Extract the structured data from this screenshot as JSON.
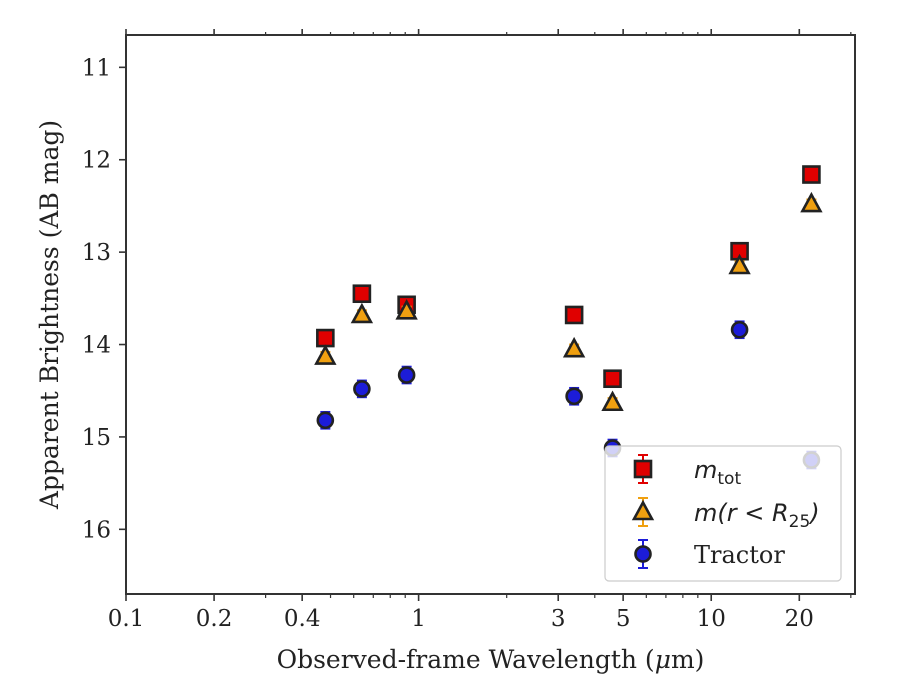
{
  "chart_data": {
    "type": "scatter",
    "x_scale": "log",
    "y_inverted": true,
    "xlim": [
      0.1,
      31
    ],
    "ylim": [
      16.7,
      10.65
    ],
    "xlabel_main": "Observed-frame Wavelength (",
    "xlabel_mu": "μ",
    "xlabel_tail": "m)",
    "ylabel": "Apparent Brightness (AB mag)",
    "xticks": [
      {
        "value": 0.1,
        "label": "0.1"
      },
      {
        "value": 0.2,
        "label": "0.2"
      },
      {
        "value": 0.4,
        "label": "0.4"
      },
      {
        "value": 1,
        "label": "1"
      },
      {
        "value": 3,
        "label": "3"
      },
      {
        "value": 5,
        "label": "5"
      },
      {
        "value": 10,
        "label": "10"
      },
      {
        "value": 20,
        "label": "20"
      }
    ],
    "xminor": [
      0.3,
      0.5,
      0.6,
      0.7,
      0.8,
      0.9,
      2,
      4,
      6,
      7,
      8,
      9,
      30
    ],
    "yticks": [
      {
        "value": 11,
        "label": "11"
      },
      {
        "value": 12,
        "label": "12"
      },
      {
        "value": 13,
        "label": "13"
      },
      {
        "value": 14,
        "label": "14"
      },
      {
        "value": 15,
        "label": "15"
      },
      {
        "value": 16,
        "label": "16"
      }
    ],
    "series": [
      {
        "key": "mtot",
        "marker": "square",
        "color": "#e00000",
        "edge": "#222222",
        "errcolor": "#e00000",
        "points": [
          {
            "x": 0.48,
            "y": 13.93,
            "err": 0.06
          },
          {
            "x": 0.64,
            "y": 13.45,
            "err": 0.06
          },
          {
            "x": 0.91,
            "y": 13.57,
            "err": 0.06
          },
          {
            "x": 3.4,
            "y": 13.68,
            "err": 0.06
          },
          {
            "x": 4.6,
            "y": 14.37,
            "err": 0.06
          },
          {
            "x": 12.5,
            "y": 12.99,
            "err": 0.07
          },
          {
            "x": 22.0,
            "y": 12.16,
            "err": 0.08
          }
        ]
      },
      {
        "key": "mr25",
        "marker": "triangle",
        "color": "#f0a010",
        "edge": "#222222",
        "errcolor": "#f0a010",
        "points": [
          {
            "x": 0.48,
            "y": 14.13,
            "err": 0.05
          },
          {
            "x": 0.64,
            "y": 13.68,
            "err": 0.05
          },
          {
            "x": 0.91,
            "y": 13.64,
            "err": 0.05
          },
          {
            "x": 3.4,
            "y": 14.05,
            "err": 0.05
          },
          {
            "x": 4.6,
            "y": 14.63,
            "err": 0.05
          },
          {
            "x": 12.5,
            "y": 13.15,
            "err": 0.05
          },
          {
            "x": 22.0,
            "y": 12.48,
            "err": 0.05
          }
        ]
      },
      {
        "key": "tractor",
        "marker": "circle",
        "color": "#1c1cd8",
        "edge": "#222222",
        "errcolor": "#1c1cd8",
        "points": [
          {
            "x": 0.48,
            "y": 14.82,
            "err": 0.09
          },
          {
            "x": 0.64,
            "y": 14.48,
            "err": 0.09
          },
          {
            "x": 0.91,
            "y": 14.33,
            "err": 0.09
          },
          {
            "x": 3.4,
            "y": 14.56,
            "err": 0.09
          },
          {
            "x": 4.6,
            "y": 15.12,
            "err": 0.09
          },
          {
            "x": 12.5,
            "y": 13.84,
            "err": 0.09
          },
          {
            "x": 22.0,
            "y": 15.25,
            "err": 0.09
          }
        ]
      }
    ],
    "legend": {
      "position": "lower right",
      "entries": [
        {
          "key": "mtot",
          "label_main": "m",
          "label_sub": "tot"
        },
        {
          "key": "mr25",
          "label_main": "m(r < R",
          "label_sub": "25",
          "label_tail": ")"
        },
        {
          "key": "tractor",
          "label_main": "Tractor"
        }
      ]
    }
  }
}
